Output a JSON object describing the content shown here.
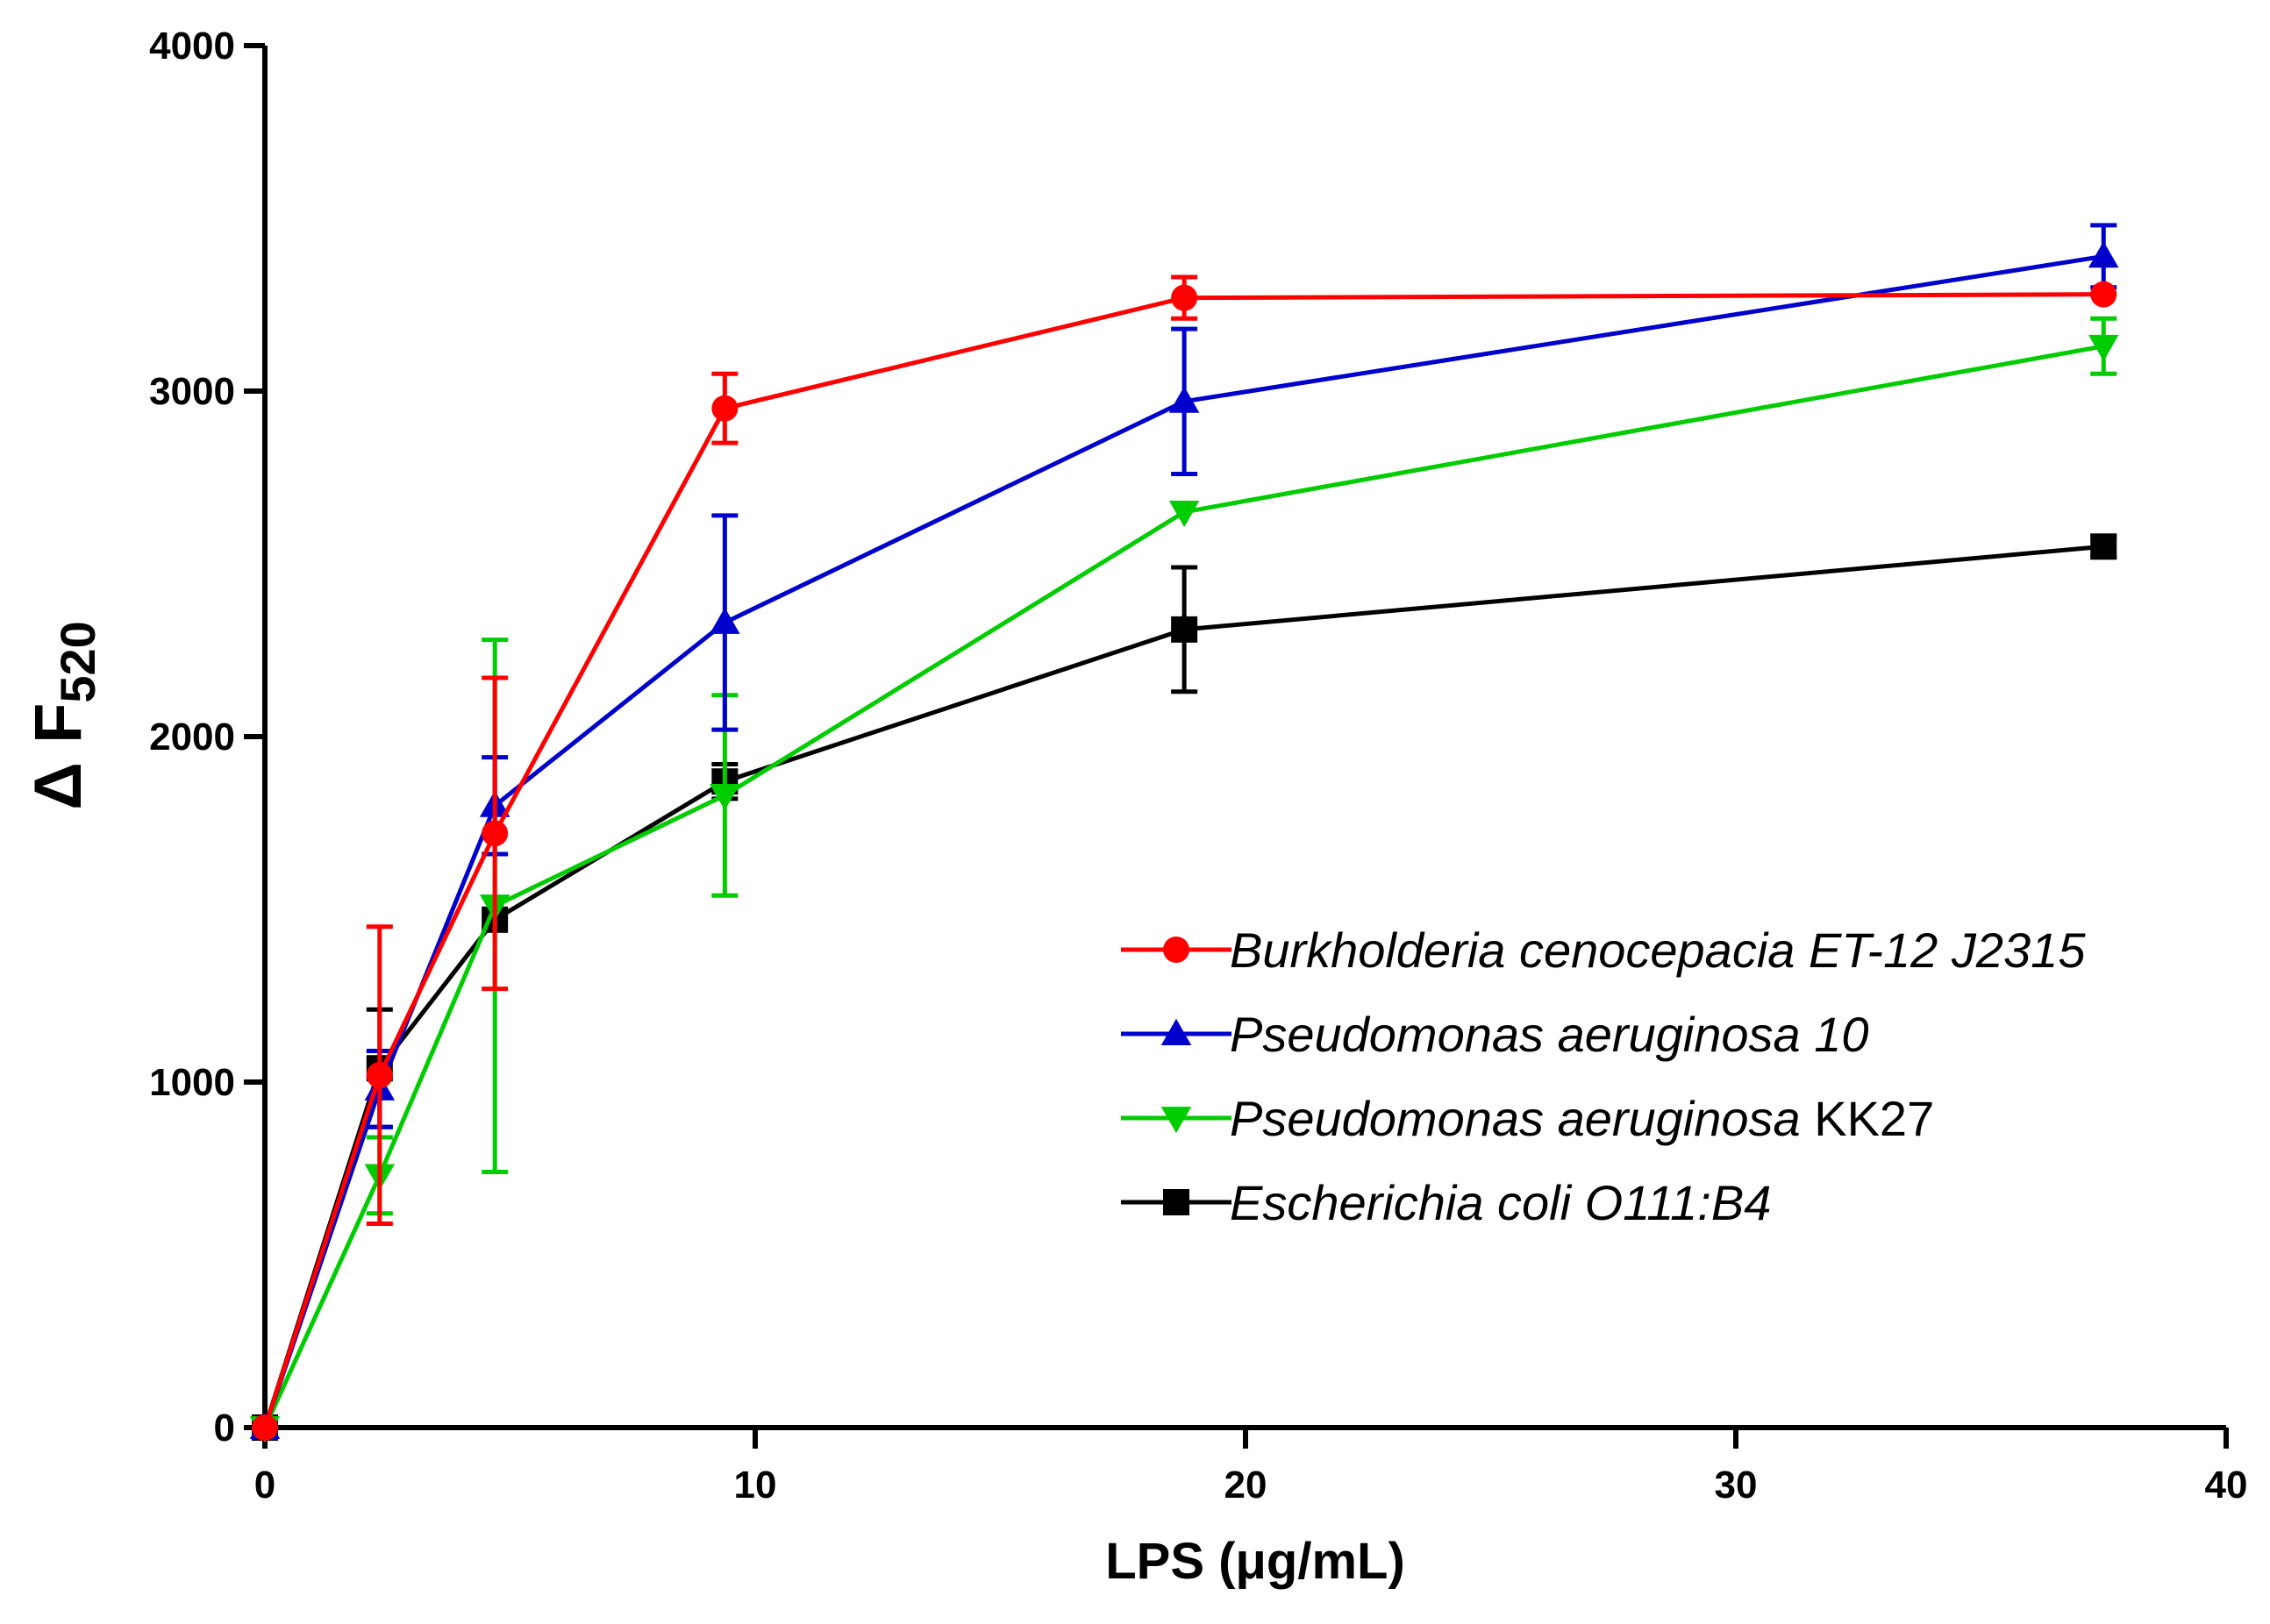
{
  "chart_data": {
    "type": "line",
    "xlabel": "LPS (μg/mL)",
    "ylabel_prefix": "Δ F",
    "ylabel_subscript": "520",
    "xlim": [
      0,
      40
    ],
    "ylim": [
      0,
      4000
    ],
    "x_ticks": [
      0,
      10,
      20,
      30,
      40
    ],
    "y_ticks": [
      0,
      1000,
      2000,
      3000,
      4000
    ],
    "x_tick_labels": [
      "0",
      "10",
      "20",
      "30",
      "40"
    ],
    "y_tick_labels": [
      "0",
      "1000",
      "2000",
      "3000",
      "4000"
    ],
    "legend_position": "center-right",
    "series": [
      {
        "name": "Burkholderia cenocepacia ET-12 J2315",
        "name_italic": "Burkholderia cenocepacia ET-12 J2315",
        "name_plain": "",
        "color": "#ff0000",
        "marker": "circle",
        "x": [
          0,
          2.34,
          4.69,
          9.38,
          18.75,
          37.5
        ],
        "y": [
          0,
          1020,
          1720,
          2950,
          3270,
          3280
        ],
        "err": [
          0,
          430,
          450,
          100,
          60,
          0
        ]
      },
      {
        "name": "Pseudomonas aeruginosa 10",
        "name_italic": "Pseudomonas aeruginosa 10",
        "name_plain": "",
        "color": "#0000cc",
        "marker": "triangle-up",
        "x": [
          0,
          2.34,
          4.69,
          9.38,
          18.75,
          37.5
        ],
        "y": [
          0,
          980,
          1800,
          2330,
          2970,
          3390
        ],
        "err": [
          0,
          110,
          140,
          310,
          210,
          90
        ]
      },
      {
        "name": "Pseudomonas aeruginosa KK27",
        "name_italic": "Pseudomonas aeruginosa",
        "name_plain": " KK27",
        "color": "#00cc00",
        "marker": "triangle-down",
        "x": [
          0,
          2.34,
          4.69,
          9.38,
          18.75,
          37.5
        ],
        "y": [
          0,
          730,
          1510,
          1830,
          2650,
          3130
        ],
        "err": [
          0,
          110,
          770,
          290,
          0,
          80
        ]
      },
      {
        "name": "Escherichia coli O111:B4",
        "name_italic": "Escherichia coli O111:B4",
        "name_plain": "",
        "color": "#000000",
        "marker": "square",
        "x": [
          0,
          2.34,
          4.69,
          9.38,
          18.75,
          37.5
        ],
        "y": [
          0,
          1040,
          1470,
          1870,
          2310,
          2550
        ],
        "err": [
          0,
          170,
          0,
          50,
          180,
          30
        ]
      }
    ]
  }
}
